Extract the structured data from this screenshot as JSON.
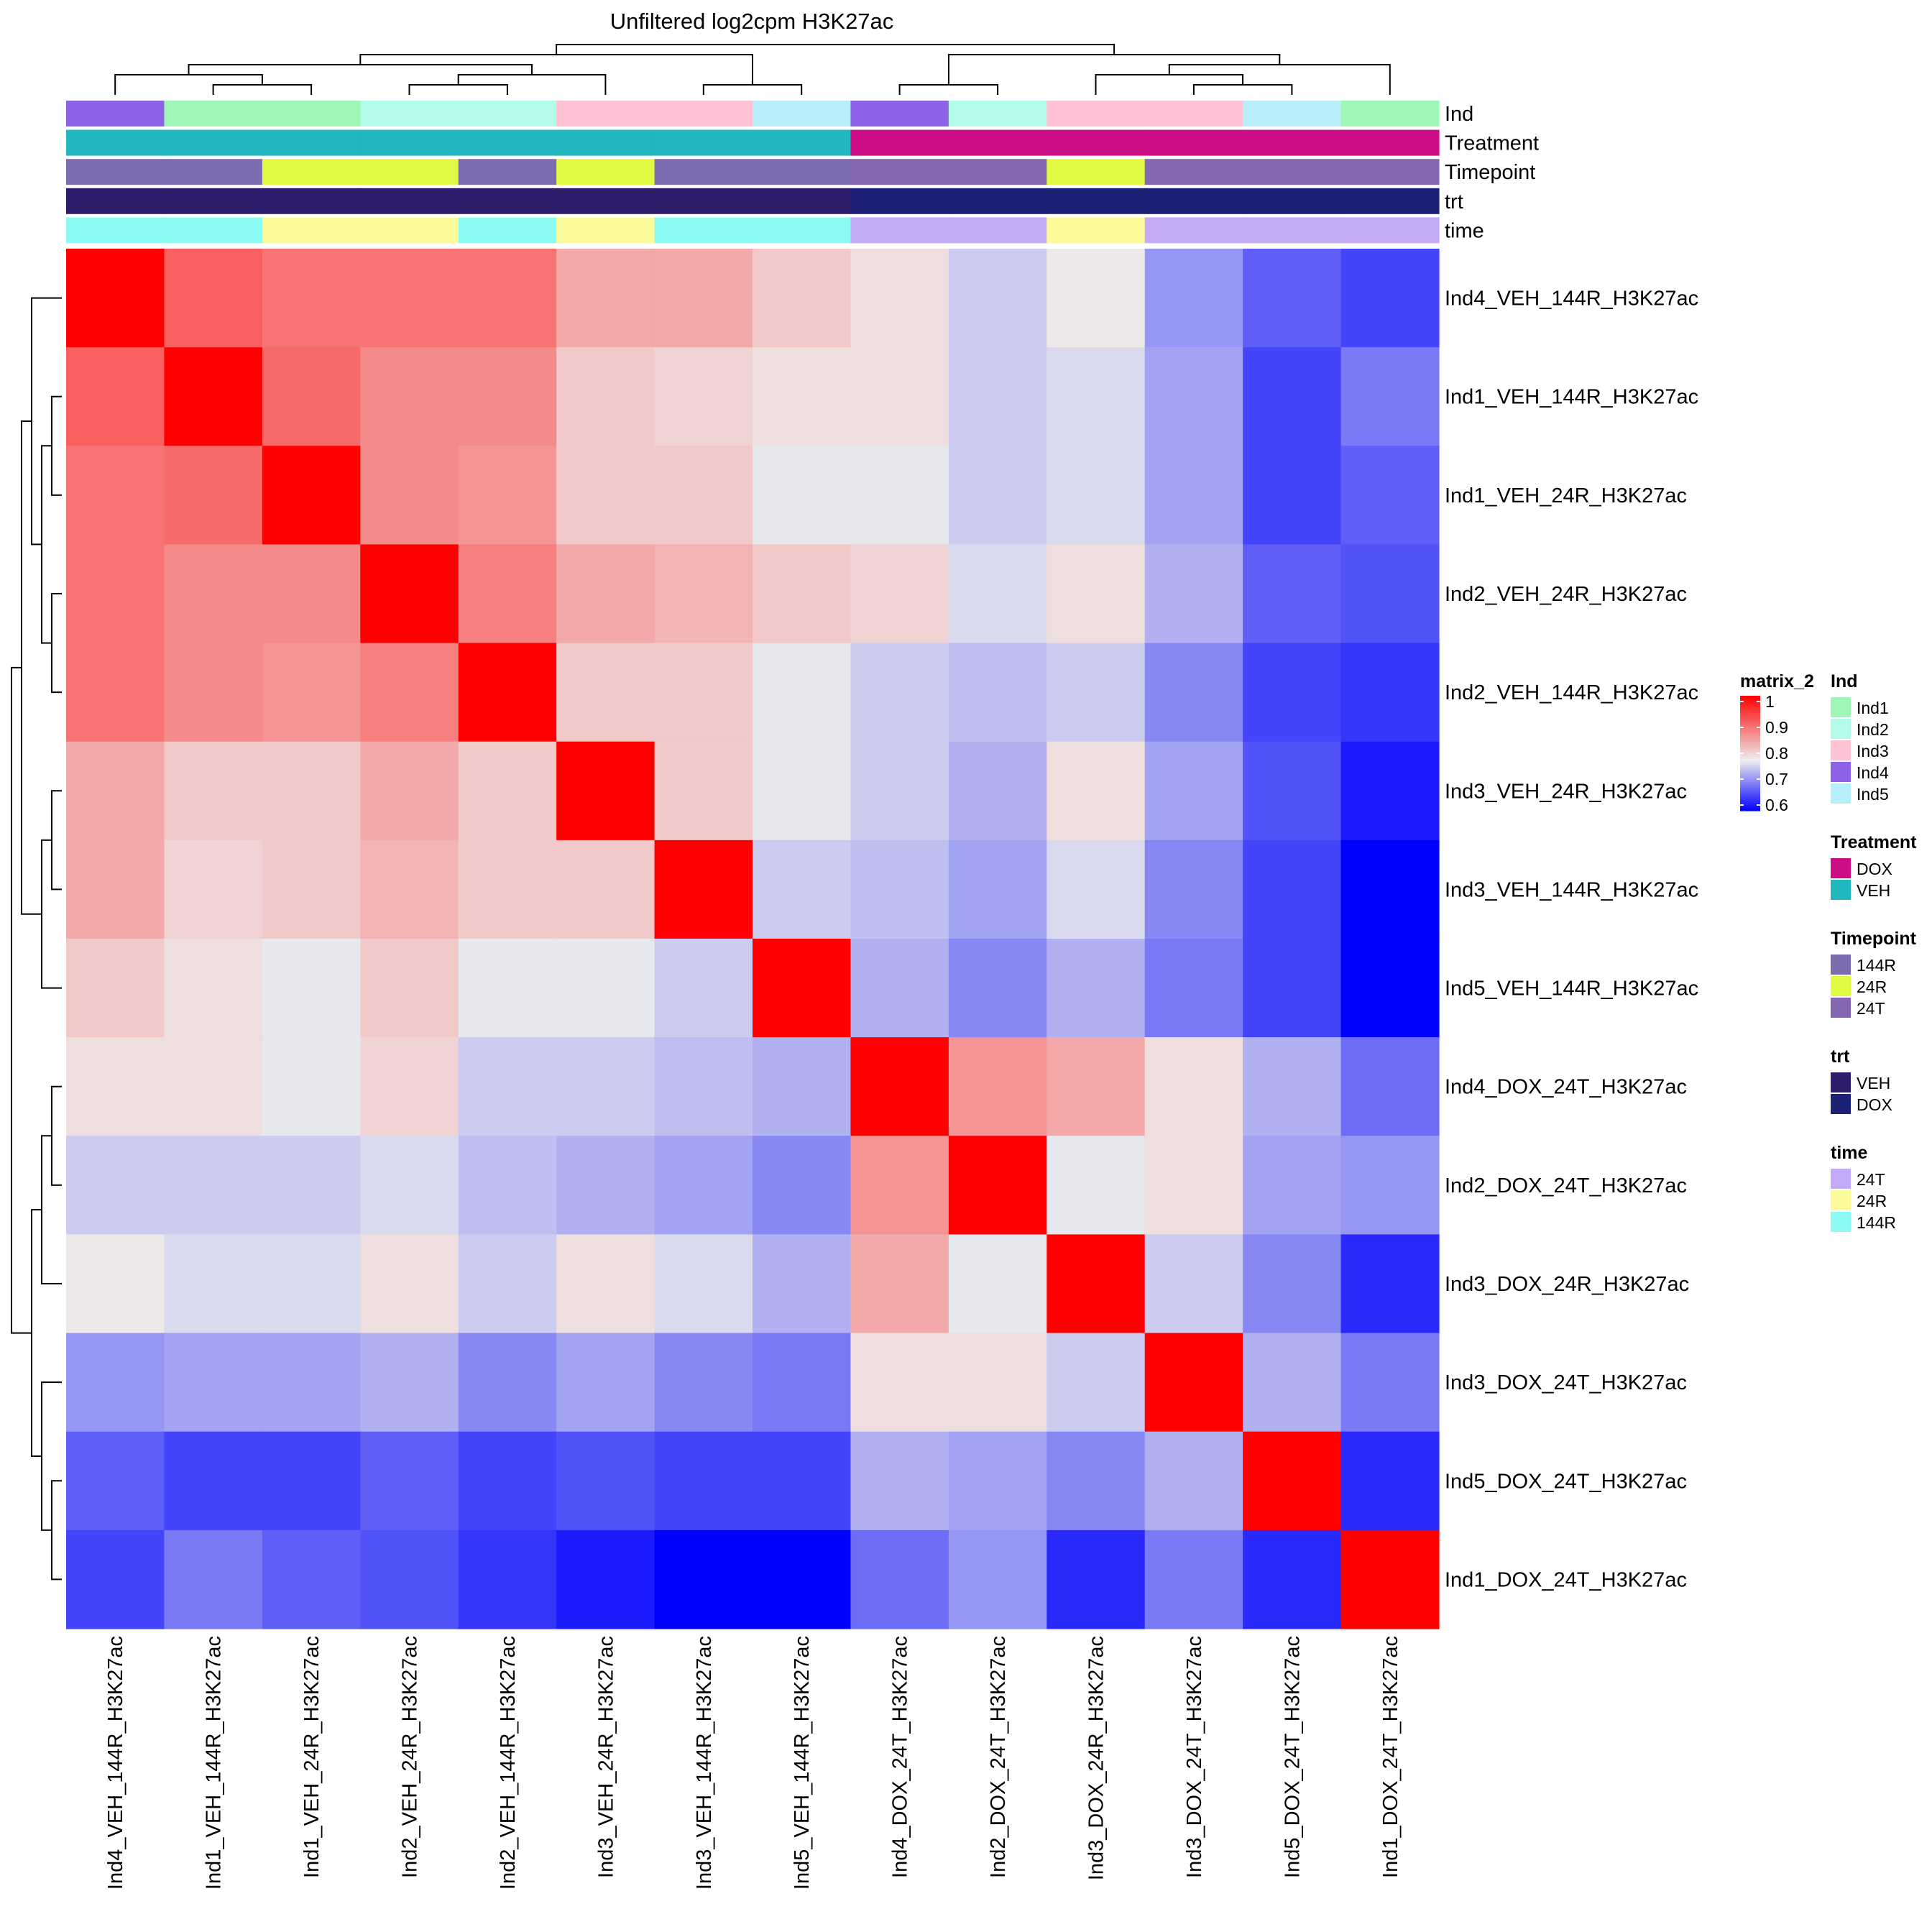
{
  "chart_data": {
    "type": "heatmap",
    "title": "Unfiltered log2cpm H3K27ac",
    "rows": [
      "Ind4_VEH_144R_H3K27ac",
      "Ind1_VEH_144R_H3K27ac",
      "Ind1_VEH_24R_H3K27ac",
      "Ind2_VEH_24R_H3K27ac",
      "Ind2_VEH_144R_H3K27ac",
      "Ind3_VEH_24R_H3K27ac",
      "Ind3_VEH_144R_H3K27ac",
      "Ind5_VEH_144R_H3K27ac",
      "Ind4_DOX_24T_H3K27ac",
      "Ind2_DOX_24T_H3K27ac",
      "Ind3_DOX_24R_H3K27ac",
      "Ind3_DOX_24T_H3K27ac",
      "Ind5_DOX_24T_H3K27ac",
      "Ind1_DOX_24T_H3K27ac"
    ],
    "columns": [
      "Ind4_VEH_144R_H3K27ac",
      "Ind1_VEH_144R_H3K27ac",
      "Ind1_VEH_24R_H3K27ac",
      "Ind2_VEH_24R_H3K27ac",
      "Ind2_VEH_144R_H3K27ac",
      "Ind3_VEH_24R_H3K27ac",
      "Ind3_VEH_144R_H3K27ac",
      "Ind5_VEH_144R_H3K27ac",
      "Ind4_DOX_24T_H3K27ac",
      "Ind2_DOX_24T_H3K27ac",
      "Ind3_DOX_24R_H3K27ac",
      "Ind3_DOX_24T_H3K27ac",
      "Ind5_DOX_24T_H3K27ac",
      "Ind1_DOX_24T_H3K27ac"
    ],
    "values": [
      [
        1.0,
        0.91,
        0.89,
        0.89,
        0.89,
        0.84,
        0.84,
        0.81,
        0.79,
        0.75,
        0.78,
        0.71,
        0.67,
        0.65
      ],
      [
        0.91,
        1.0,
        0.9,
        0.87,
        0.87,
        0.81,
        0.8,
        0.79,
        0.79,
        0.75,
        0.76,
        0.72,
        0.65,
        0.69
      ],
      [
        0.89,
        0.9,
        1.0,
        0.87,
        0.86,
        0.81,
        0.81,
        0.77,
        0.77,
        0.75,
        0.76,
        0.72,
        0.65,
        0.67
      ],
      [
        0.89,
        0.87,
        0.87,
        1.0,
        0.88,
        0.84,
        0.83,
        0.81,
        0.8,
        0.76,
        0.79,
        0.73,
        0.67,
        0.66
      ],
      [
        0.89,
        0.87,
        0.86,
        0.88,
        1.0,
        0.81,
        0.81,
        0.77,
        0.75,
        0.74,
        0.75,
        0.7,
        0.65,
        0.64
      ],
      [
        0.84,
        0.81,
        0.81,
        0.84,
        0.81,
        1.0,
        0.81,
        0.77,
        0.75,
        0.73,
        0.79,
        0.72,
        0.66,
        0.62
      ],
      [
        0.84,
        0.8,
        0.81,
        0.83,
        0.81,
        0.81,
        1.0,
        0.75,
        0.74,
        0.72,
        0.76,
        0.7,
        0.65,
        0.6
      ],
      [
        0.81,
        0.79,
        0.77,
        0.81,
        0.77,
        0.77,
        0.75,
        1.0,
        0.73,
        0.7,
        0.73,
        0.69,
        0.65,
        0.6
      ],
      [
        0.79,
        0.79,
        0.77,
        0.8,
        0.75,
        0.75,
        0.74,
        0.73,
        1.0,
        0.86,
        0.84,
        0.79,
        0.73,
        0.68
      ],
      [
        0.75,
        0.75,
        0.75,
        0.76,
        0.74,
        0.73,
        0.72,
        0.7,
        0.86,
        1.0,
        0.77,
        0.79,
        0.72,
        0.71
      ],
      [
        0.78,
        0.76,
        0.76,
        0.79,
        0.75,
        0.79,
        0.76,
        0.73,
        0.84,
        0.77,
        1.0,
        0.75,
        0.7,
        0.63
      ],
      [
        0.71,
        0.72,
        0.72,
        0.73,
        0.7,
        0.72,
        0.7,
        0.69,
        0.79,
        0.79,
        0.75,
        1.0,
        0.73,
        0.69
      ],
      [
        0.67,
        0.65,
        0.65,
        0.67,
        0.65,
        0.66,
        0.65,
        0.65,
        0.73,
        0.72,
        0.7,
        0.73,
        1.0,
        0.63
      ],
      [
        0.65,
        0.69,
        0.67,
        0.66,
        0.64,
        0.62,
        0.6,
        0.6,
        0.68,
        0.71,
        0.63,
        0.69,
        0.63,
        1.0
      ]
    ],
    "color_scale": {
      "min": 0.6,
      "mid": 0.775,
      "max": 1.0,
      "low_color": "#0000FF",
      "mid_color": "#EEEEEE",
      "high_color": "#FF0000"
    },
    "annotations": [
      {
        "name": "Ind",
        "values": [
          "Ind4",
          "Ind1",
          "Ind1",
          "Ind2",
          "Ind2",
          "Ind3",
          "Ind3",
          "Ind5",
          "Ind4",
          "Ind2",
          "Ind3",
          "Ind3",
          "Ind5",
          "Ind1"
        ]
      },
      {
        "name": "Treatment",
        "values": [
          "VEH",
          "VEH",
          "VEH",
          "VEH",
          "VEH",
          "VEH",
          "VEH",
          "VEH",
          "DOX",
          "DOX",
          "DOX",
          "DOX",
          "DOX",
          "DOX"
        ]
      },
      {
        "name": "Timepoint",
        "values": [
          "144R",
          "144R",
          "24R",
          "24R",
          "144R",
          "24R",
          "144R",
          "144R",
          "24T",
          "24T",
          "24R",
          "24T",
          "24T",
          "24T"
        ]
      },
      {
        "name": "trt",
        "values": [
          "VEH",
          "VEH",
          "VEH",
          "VEH",
          "VEH",
          "VEH",
          "VEH",
          "VEH",
          "DOX",
          "DOX",
          "DOX",
          "DOX",
          "DOX",
          "DOX"
        ]
      },
      {
        "name": "time",
        "values": [
          "144R",
          "144R",
          "24R",
          "24R",
          "144R",
          "24R",
          "144R",
          "144R",
          "24T",
          "24T",
          "24R",
          "24T",
          "24T",
          "24T"
        ]
      }
    ],
    "legends": [
      {
        "title": "matrix_2",
        "type": "continuous",
        "ticks": [
          "1",
          "0.9",
          "0.8",
          "0.7",
          "0.6"
        ]
      },
      {
        "title": "Ind",
        "entries": [
          {
            "label": "Ind1",
            "color": "#9FF7B7"
          },
          {
            "label": "Ind2",
            "color": "#B3FBEB"
          },
          {
            "label": "Ind3",
            "color": "#FFC2D4"
          },
          {
            "label": "Ind4",
            "color": "#8E62E7"
          },
          {
            "label": "Ind5",
            "color": "#B7EEFA"
          }
        ]
      },
      {
        "title": "Treatment",
        "entries": [
          {
            "label": "DOX",
            "color": "#CC0D86"
          },
          {
            "label": "VEH",
            "color": "#20B7BF"
          }
        ]
      },
      {
        "title": "Timepoint",
        "entries": [
          {
            "label": "144R",
            "color": "#7B6DB0"
          },
          {
            "label": "24R",
            "color": "#E0FA43"
          },
          {
            "label": "24T",
            "color": "#8368B1"
          }
        ]
      },
      {
        "title": "trt",
        "entries": [
          {
            "label": "VEH",
            "color": "#2D1B6B"
          },
          {
            "label": "DOX",
            "color": "#1C2175"
          }
        ]
      },
      {
        "title": "time",
        "entries": [
          {
            "label": "24T",
            "color": "#C4AAF9"
          },
          {
            "label": "24R",
            "color": "#FCFB99"
          },
          {
            "label": "144R",
            "color": "#8BFBF3"
          }
        ]
      }
    ],
    "column_dendrogram": {
      "root": [
        [
          [
            [
              0,
              [
                1,
                2
              ]
            ],
            [
              [
                3,
                4
              ],
              5
            ]
          ],
          [
            6,
            7
          ]
        ],
        [
          [
            8,
            9
          ],
          [
            [
              10,
              [
                11,
                12
              ]
            ],
            13
          ]
        ]
      ]
    },
    "row_dendrogram": {
      "root": [
        [
          [
            0,
            [
              [
                1,
                2
              ],
              [
                3,
                4
              ]
            ]
          ],
          [
            [
              5,
              6
            ],
            7
          ]
        ],
        [
          [
            [
              8,
              9
            ],
            10
          ],
          [
            11,
            [
              12,
              13
            ]
          ]
        ]
      ]
    }
  }
}
